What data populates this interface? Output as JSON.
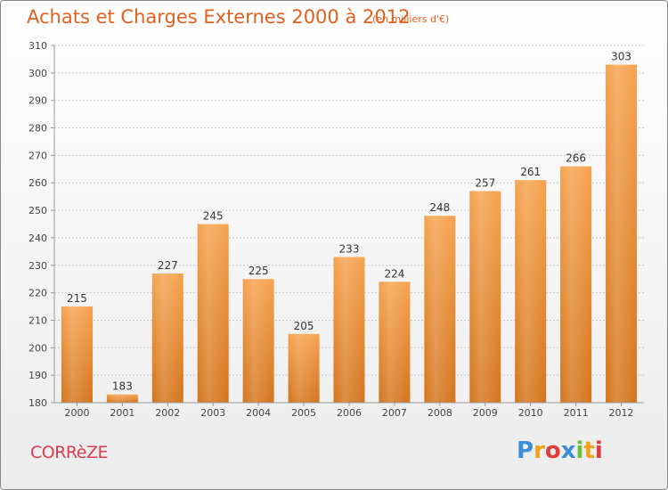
{
  "header": {
    "title": "Achats et Charges Externes 2000 à 2012",
    "subtitle": "(en milliers d'€)"
  },
  "footer": {
    "region": "CORRèZE",
    "logo_letters": [
      "P",
      "r",
      "o",
      "x",
      "i",
      "t",
      "i"
    ],
    "logo_colors": [
      "#3a8fd6",
      "#f2a21a",
      "#e23b3b",
      "#3a8fd6",
      "#6cbf3a",
      "#f2a21a",
      "#e23b3b"
    ]
  },
  "chart_data": {
    "type": "bar",
    "title": "Achats et Charges Externes 2000 à 2012",
    "subtitle": "(en milliers d'€)",
    "categories": [
      "2000",
      "2001",
      "2002",
      "2003",
      "2004",
      "2005",
      "2006",
      "2007",
      "2008",
      "2009",
      "2010",
      "2011",
      "2012"
    ],
    "values": [
      215,
      183,
      227,
      245,
      225,
      205,
      233,
      224,
      248,
      257,
      261,
      266,
      303
    ],
    "ylim": [
      180,
      310
    ],
    "yticks": [
      180,
      190,
      200,
      210,
      220,
      230,
      240,
      250,
      260,
      270,
      280,
      290,
      300,
      310
    ],
    "grid": true,
    "bar_color_top": "#f6a24e",
    "bar_color_bottom": "#d4741c"
  }
}
